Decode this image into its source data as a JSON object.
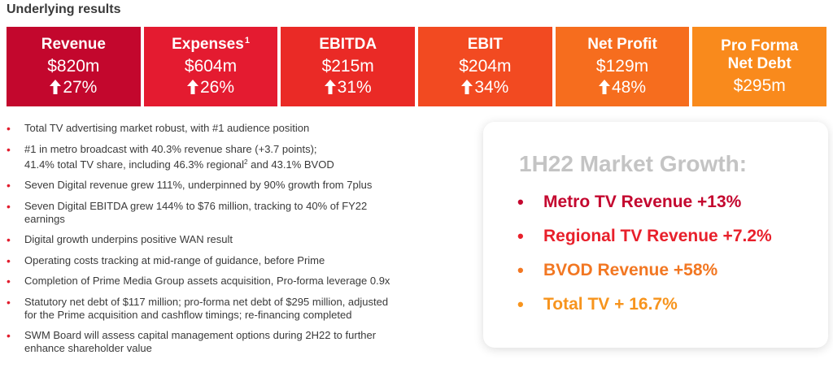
{
  "heading": "Underlying results",
  "colors": {
    "tile_1": "#c3072d",
    "tile_2": "#e41b30",
    "tile_3": "#ea2a26",
    "tile_4": "#f24a21",
    "tile_5": "#f66d1e",
    "tile_6": "#f98a1c",
    "bullet_dot": "#e21c2d",
    "card_title": "#c4c4c4"
  },
  "tiles": [
    {
      "label": "Revenue",
      "value": "$820m",
      "change": "27%",
      "icon": "up-arrow-icon"
    },
    {
      "label": "Expenses",
      "superscript": "1",
      "value": "$604m",
      "change": "26%",
      "icon": "up-arrow-icon"
    },
    {
      "label": "EBITDA",
      "value": "$215m",
      "change": "31%",
      "icon": "up-arrow-icon"
    },
    {
      "label": "EBIT",
      "value": "$204m",
      "change": "34%",
      "icon": "up-arrow-icon"
    },
    {
      "label": "Net Profit",
      "value": "$129m",
      "change": "48%",
      "icon": "up-arrow-icon"
    },
    {
      "label_line1": "Pro Forma",
      "label_line2": "Net Debt",
      "value": "$295m"
    }
  ],
  "bullets": [
    {
      "line1": "Total TV advertising market robust, with #1 audience position"
    },
    {
      "line1": "#1 in metro broadcast with 40.3% revenue share (+3.7 points);",
      "line2_a": "41.4% total TV share, including 46.3% regional",
      "line2_sup": "2",
      "line2_b": " and 43.1% BVOD"
    },
    {
      "line1": "Seven Digital revenue grew 111%, underpinned by 90% growth from 7plus"
    },
    {
      "line1": "Seven Digital EBITDA grew 144% to $76 million, tracking to 40% of FY22",
      "line2": "earnings"
    },
    {
      "line1": "Digital growth underpins positive WAN result"
    },
    {
      "line1": "Operating costs tracking at mid-range of guidance, before Prime"
    },
    {
      "line1": "Completion of Prime Media Group assets acquisition, Pro-forma leverage 0.9x"
    },
    {
      "line1": "Statutory net debt of $117 million; pro-forma net debt of $295 million, adjusted",
      "line2": "for the Prime acquisition and cashflow timings; re-financing completed"
    },
    {
      "line1": "SWM Board will assess capital management options during 2H22 to further",
      "line2": "enhance shareholder value"
    }
  ],
  "bullet_glyph": "•",
  "market_growth": {
    "title": "1H22 Market Growth:",
    "items": [
      {
        "text": "Metro TV Revenue +13%",
        "color": "#c4072f"
      },
      {
        "text": "Regional TV Revenue +7.2%",
        "color": "#e8202b"
      },
      {
        "text": "BVOD Revenue +58%",
        "color": "#f27722"
      },
      {
        "text": "Total TV + 16.7%",
        "color": "#f7941d"
      }
    ]
  }
}
